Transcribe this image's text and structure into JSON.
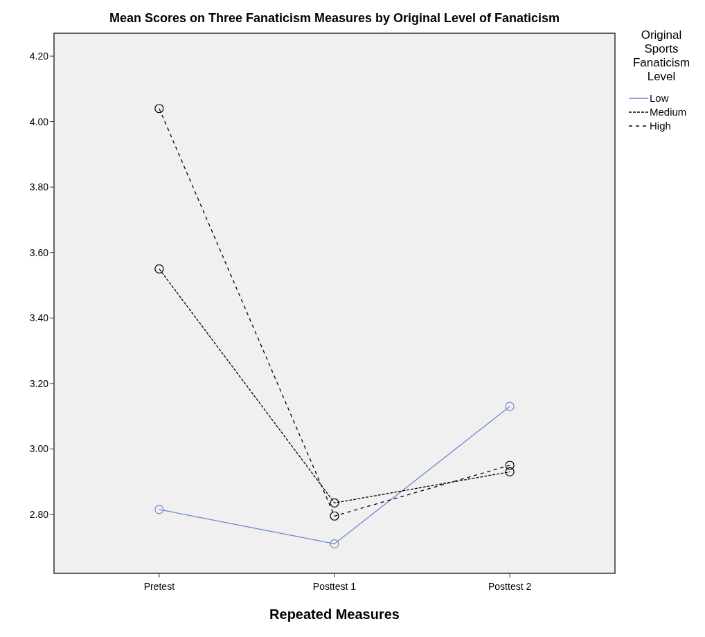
{
  "chart_data": {
    "type": "line",
    "title": "Mean Scores on Three Fanaticism Measures by Original Level of Fanaticism",
    "xlabel": "Repeated Measures",
    "legend_title": "Original Sports Fanaticism Level",
    "categories": [
      "Pretest",
      "Posttest 1",
      "Posttest 2"
    ],
    "series": [
      {
        "name": "Low",
        "color": "#6f86cf",
        "line_style": "solid",
        "values": [
          2.815,
          2.71,
          3.13
        ]
      },
      {
        "name": "Medium",
        "color": "#000000",
        "line_style": "dashed",
        "values": [
          3.55,
          2.835,
          2.93
        ]
      },
      {
        "name": "High",
        "color": "#000000",
        "line_style": "dotted",
        "values": [
          4.04,
          2.795,
          2.95
        ]
      }
    ],
    "ylim": [
      2.62,
      4.27
    ],
    "yticks": [
      {
        "value": 2.8,
        "label": "2.80"
      },
      {
        "value": 3.0,
        "label": "3.00"
      },
      {
        "value": 3.2,
        "label": "3.20"
      },
      {
        "value": 3.4,
        "label": "3.40"
      },
      {
        "value": 3.6,
        "label": "3.60"
      },
      {
        "value": 3.8,
        "label": "3.80"
      },
      {
        "value": 4.0,
        "label": "4.00"
      },
      {
        "value": 4.2,
        "label": "4.20"
      }
    ],
    "marker": "circle",
    "grid": false,
    "legend": "right"
  }
}
